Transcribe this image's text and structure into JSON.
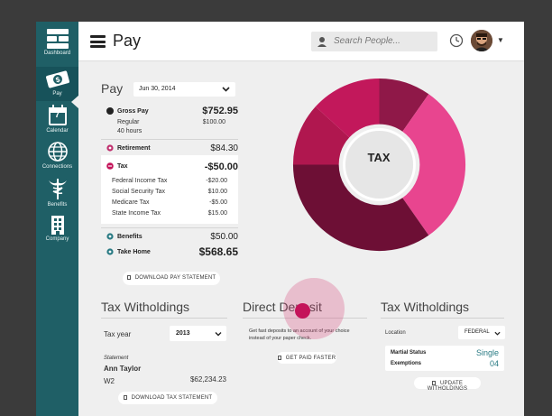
{
  "sidebar": {
    "items": [
      {
        "label": "Dashboard",
        "icon": "dashboard-icon"
      },
      {
        "label": "Pay",
        "icon": "pay-icon",
        "active": true
      },
      {
        "label": "Calendar",
        "icon": "calendar-icon",
        "day": "7"
      },
      {
        "label": "Connections",
        "icon": "globe-icon"
      },
      {
        "label": "Benefits",
        "icon": "caduceus-icon"
      },
      {
        "label": "Company",
        "icon": "building-icon"
      }
    ]
  },
  "header": {
    "title": "Pay",
    "search_placeholder": "Search People..."
  },
  "pay": {
    "title": "Pay",
    "date": "Jun 30, 2014",
    "gross_pay": {
      "label": "Gross Pay",
      "value": "$752.95",
      "regular_label": "Regular",
      "regular_value": "$100.00",
      "hours": "40 hours"
    },
    "retirement": {
      "label": "Retirement",
      "value": "$84.30"
    },
    "tax": {
      "label": "Tax",
      "value": "-$50.00",
      "items": [
        {
          "label": "Federal Income Tax",
          "value": "-$20.00"
        },
        {
          "label": "Social Security Tax",
          "value": "$10.00"
        },
        {
          "label": "Medicare Tax",
          "value": "-$5.00"
        },
        {
          "label": "State Income Tax",
          "value": "$15.00"
        }
      ]
    },
    "benefits": {
      "label": "Benefits",
      "value": "$50.00"
    },
    "take_home": {
      "label": "Take Home",
      "value": "$568.65"
    },
    "download_label": "DOWNLOAD PAY STATEMENT"
  },
  "donut": {
    "center_label": "TAX",
    "colors": [
      "#8f1848",
      "#c2185b",
      "#e8458f",
      "#6d0f35",
      "#b0174f"
    ]
  },
  "tax_withholdings_left": {
    "title": "Tax Witholdings",
    "tax_year_label": "Tax year",
    "tax_year": "2013",
    "statement_label": "Statement",
    "name": "Ann Taylor",
    "form": "W2",
    "amount": "$62,234.23",
    "download_label": "DOWNLOAD TAX STATEMENT"
  },
  "direct_deposit": {
    "title": "Direct Deposit",
    "text_line1": "Get fast deposits to an account of your choice",
    "text_line2": "instead of your paper check.",
    "button_label": "GET PAID FASTER"
  },
  "tax_withholdings_right": {
    "title": "Tax Witholdings",
    "location_label": "Location",
    "location": "FEDERAL",
    "marital_label": "Martial Status",
    "marital_value": "Single",
    "exemptions_label": "Exemptions",
    "exemptions_value": "04",
    "button_label": "UPDATE WITHOLDINGS"
  }
}
